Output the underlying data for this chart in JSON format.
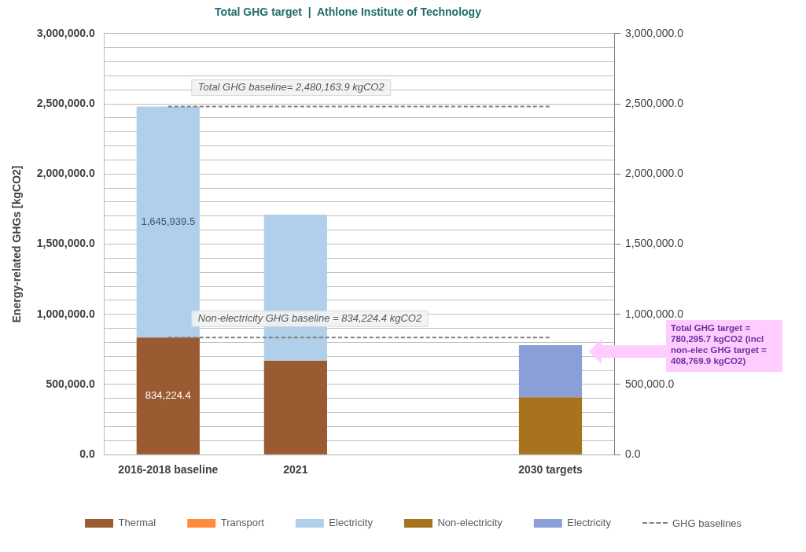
{
  "chart_data": {
    "type": "bar",
    "title": "Total GHG target  |  Athlone Institute of Technology",
    "ylabel": "Energy-related GHGs [kgCO2]",
    "categories": [
      "2016-2018 baseline",
      "2021",
      null,
      "2030 targets"
    ],
    "stacked": true,
    "series": [
      {
        "name": "Thermal",
        "color": "#9a5b33",
        "values": [
          834224.4,
          670000,
          null,
          null
        ],
        "value_labels": [
          "834,224.4",
          null,
          null,
          null
        ]
      },
      {
        "name": "Transport",
        "color": "#ff8c3a",
        "values": [
          0,
          0,
          null,
          null
        ]
      },
      {
        "name": "Electricity",
        "color": "#b0cfea",
        "values": [
          1645939.5,
          1040000,
          null,
          null
        ],
        "value_labels": [
          "1,645,939.5",
          null,
          null,
          null
        ]
      },
      {
        "name": "Non-electricity",
        "color": "#a8731f",
        "values": [
          null,
          null,
          null,
          408769.9
        ]
      },
      {
        "name": "Electricity",
        "color": "#8a9fd8",
        "values": [
          null,
          null,
          null,
          371500
        ]
      }
    ],
    "ylim": [
      0,
      3000000
    ],
    "yticks": [
      {
        "value": 0,
        "label": "0.0"
      },
      {
        "value": 100000,
        "label": null
      },
      {
        "value": 200000,
        "label": null
      },
      {
        "value": 300000,
        "label": null
      },
      {
        "value": 400000,
        "label": null
      },
      {
        "value": 500000,
        "label": "500,000.0"
      },
      {
        "value": 600000,
        "label": null
      },
      {
        "value": 700000,
        "label": null
      },
      {
        "value": 800000,
        "label": null
      },
      {
        "value": 900000,
        "label": null
      },
      {
        "value": 1000000,
        "label": "1,000,000.0"
      },
      {
        "value": 1100000,
        "label": null
      },
      {
        "value": 1200000,
        "label": null
      },
      {
        "value": 1300000,
        "label": null
      },
      {
        "value": 1400000,
        "label": null
      },
      {
        "value": 1500000,
        "label": "1,500,000.0"
      },
      {
        "value": 1600000,
        "label": null
      },
      {
        "value": 1700000,
        "label": null
      },
      {
        "value": 1800000,
        "label": null
      },
      {
        "value": 1900000,
        "label": null
      },
      {
        "value": 2000000,
        "label": "2,000,000.0"
      },
      {
        "value": 2100000,
        "label": null
      },
      {
        "value": 2200000,
        "label": null
      },
      {
        "value": 2300000,
        "label": null
      },
      {
        "value": 2400000,
        "label": null
      },
      {
        "value": 2500000,
        "label": "2,500,000.0"
      },
      {
        "value": 2600000,
        "label": null
      },
      {
        "value": 2700000,
        "label": null
      },
      {
        "value": 2800000,
        "label": null
      },
      {
        "value": 2900000,
        "label": null
      },
      {
        "value": 3000000,
        "label": "3,000,000.0"
      }
    ],
    "y2lim": [
      0,
      3000000
    ],
    "y2ticks": [
      {
        "value": 0,
        "label": "0.0"
      },
      {
        "value": 500000,
        "label": "500,000.0"
      },
      {
        "value": 1000000,
        "label": "1,000,000.0"
      },
      {
        "value": 1500000,
        "label": "1,500,000.0"
      },
      {
        "value": 2000000,
        "label": "2,000,000.0"
      },
      {
        "value": 2500000,
        "label": "2,500,000.0"
      },
      {
        "value": 3000000,
        "label": "3,000,000.0"
      }
    ],
    "grid": "y",
    "legend": "bottom",
    "ref_lines": [
      {
        "axis": "y",
        "value": 2480163.9,
        "label": "Total GHG baseline= 2,480,163.9 kgCO2",
        "color": "#808080",
        "line_style": "dashed"
      },
      {
        "axis": "y",
        "value": 834224.4,
        "label": "Non-electricity GHG baseline = 834,224.4 kgCO2",
        "color": "#808080",
        "line_style": "dashed"
      }
    ],
    "annotations": [
      "Total GHG target = 780,295.7 kgCO2 (incl non-elec GHG target = 408,769.9 kgCO2)",
      "GHG baselines"
    ]
  }
}
